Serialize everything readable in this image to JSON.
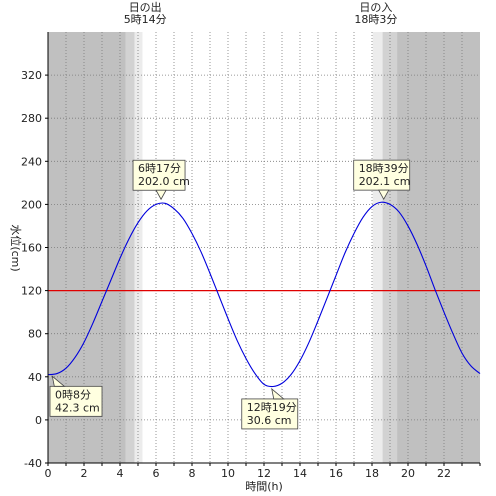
{
  "chart_data": {
    "type": "line",
    "xlabel": "時間(h)",
    "ylabel": "水位(cm)",
    "xlim": [
      0,
      24
    ],
    "ylim": [
      -40,
      360
    ],
    "x_ticks": [
      "0",
      "2",
      "4",
      "6",
      "8",
      "10",
      "12",
      "14",
      "16",
      "18",
      "20",
      "22"
    ],
    "y_ticks": [
      "-40",
      "0",
      "40",
      "80",
      "120",
      "160",
      "200",
      "240",
      "280",
      "320"
    ],
    "grid": true,
    "reference_line": {
      "value": 120,
      "color": "#e00000"
    },
    "line_color": "#0000dd",
    "series": [
      {
        "x": [
          0,
          0.5,
          1,
          1.5,
          2,
          2.5,
          3,
          3.5,
          4,
          4.5,
          5,
          5.5,
          6,
          6.5,
          7,
          7.5,
          8,
          8.5,
          9,
          9.5,
          10,
          10.5,
          11,
          11.5,
          12,
          12.5,
          13,
          13.5,
          14,
          14.5,
          15,
          15.5,
          16,
          16.5,
          17,
          17.5,
          18,
          18.5,
          19,
          19.5,
          20,
          20.5,
          21,
          21.5,
          22,
          22.5,
          23,
          23.5,
          24
        ],
        "values": [
          42,
          43,
          48,
          58,
          72,
          90,
          110,
          130,
          150,
          168,
          183,
          194,
          200,
          201,
          196,
          187,
          173,
          156,
          136,
          115,
          94,
          74,
          57,
          43,
          33,
          31,
          34,
          42,
          55,
          72,
          92,
          113,
          134,
          155,
          173,
          188,
          198,
          202,
          200,
          193,
          180,
          163,
          143,
          121,
          100,
          80,
          62,
          50,
          43
        ]
      }
    ],
    "sun_events": [
      {
        "title": "日の出",
        "time": "5時14分",
        "hour": 5.233
      },
      {
        "title": "日の入",
        "time": "18時3分",
        "hour": 18.05
      }
    ],
    "twilight_bands": [
      {
        "from": 4.3,
        "to": 4.8,
        "shade": "#d2d2d2"
      },
      {
        "from": 4.8,
        "to": 5.233,
        "shade": "#ececec"
      },
      {
        "from": 18.05,
        "to": 18.6,
        "shade": "#ececec"
      },
      {
        "from": 18.6,
        "to": 19.4,
        "shade": "#d2d2d2"
      }
    ],
    "night_color": "#c0c0c0",
    "annotations": [
      {
        "line1": "0時8分",
        "line2": "42.3 cm",
        "x": 0.13,
        "y": 42.3,
        "position": "below"
      },
      {
        "line1": "6時17分",
        "line2": "202.0 cm",
        "x": 6.28,
        "y": 202.0,
        "position": "above"
      },
      {
        "line1": "12時19分",
        "line2": "30.6 cm",
        "x": 12.32,
        "y": 30.6,
        "position": "below"
      },
      {
        "line1": "18時39分",
        "line2": "202.1 cm",
        "x": 18.65,
        "y": 202.1,
        "position": "above"
      }
    ]
  }
}
